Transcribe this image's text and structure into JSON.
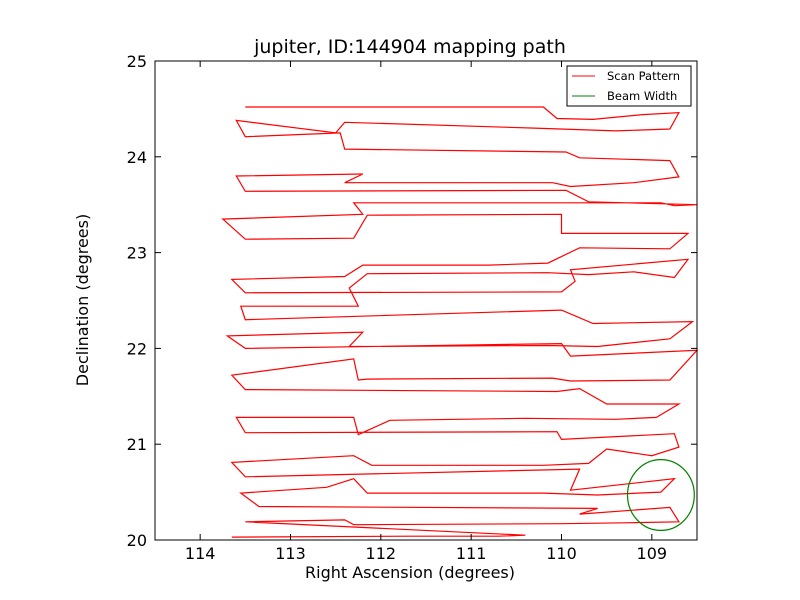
{
  "chart_data": {
    "type": "line",
    "title": "jupiter, ID:144904 mapping path",
    "xlabel": "Right Ascension (degrees)",
    "ylabel": "Declination (degrees)",
    "xlim": [
      114.5,
      108.5
    ],
    "ylim": [
      20,
      25
    ],
    "x_inverted": true,
    "xticks": [
      114,
      113,
      112,
      111,
      110,
      109
    ],
    "yticks": [
      20,
      21,
      22,
      23,
      24,
      25
    ],
    "xtick_labels": [
      "114",
      "113",
      "112",
      "111",
      "110",
      "109"
    ],
    "ytick_labels": [
      "20",
      "21",
      "22",
      "23",
      "24",
      "25"
    ],
    "grid": false,
    "legend_position": "top-right",
    "series": [
      {
        "name": "Scan Pattern",
        "color": "#ff0000",
        "kind": "path",
        "points": [
          [
            113.65,
            20.03
          ],
          [
            111.7,
            20.04
          ],
          [
            110.7,
            20.04
          ],
          [
            110.4,
            20.05
          ],
          [
            113.5,
            20.19
          ],
          [
            112.4,
            20.21
          ],
          [
            112.3,
            20.16
          ],
          [
            110.0,
            20.17
          ],
          [
            109.3,
            20.18
          ],
          [
            108.7,
            20.19
          ],
          [
            108.8,
            20.34
          ],
          [
            109.8,
            20.27
          ],
          [
            109.6,
            20.33
          ],
          [
            113.35,
            20.35
          ],
          [
            113.55,
            20.49
          ],
          [
            112.6,
            20.55
          ],
          [
            112.3,
            20.64
          ],
          [
            112.15,
            20.49
          ],
          [
            110.2,
            20.49
          ],
          [
            109.6,
            20.47
          ],
          [
            108.9,
            20.5
          ],
          [
            108.75,
            20.64
          ],
          [
            109.9,
            20.52
          ],
          [
            109.8,
            20.74
          ],
          [
            113.5,
            20.66
          ],
          [
            113.65,
            20.81
          ],
          [
            112.3,
            20.88
          ],
          [
            112.1,
            20.78
          ],
          [
            110.2,
            20.78
          ],
          [
            109.7,
            20.8
          ],
          [
            109.5,
            20.95
          ],
          [
            109.0,
            20.88
          ],
          [
            108.7,
            20.97
          ],
          [
            108.75,
            21.11
          ],
          [
            110.0,
            21.05
          ],
          [
            110.05,
            21.13
          ],
          [
            113.5,
            21.12
          ],
          [
            113.6,
            21.28
          ],
          [
            112.3,
            21.28
          ],
          [
            112.25,
            21.1
          ],
          [
            111.9,
            21.25
          ],
          [
            110.4,
            21.27
          ],
          [
            109.4,
            21.26
          ],
          [
            108.95,
            21.28
          ],
          [
            108.7,
            21.42
          ],
          [
            109.5,
            21.42
          ],
          [
            109.8,
            21.58
          ],
          [
            110.05,
            21.55
          ],
          [
            113.5,
            21.57
          ],
          [
            113.65,
            21.72
          ],
          [
            112.3,
            21.89
          ],
          [
            112.25,
            21.67
          ],
          [
            112.15,
            21.68
          ],
          [
            110.1,
            21.69
          ],
          [
            109.9,
            21.66
          ],
          [
            108.8,
            21.67
          ],
          [
            108.5,
            21.98
          ],
          [
            109.9,
            21.92
          ],
          [
            110.0,
            22.05
          ],
          [
            113.5,
            22.0
          ],
          [
            113.7,
            22.13
          ],
          [
            112.2,
            22.17
          ],
          [
            112.35,
            22.02
          ],
          [
            110.15,
            22.03
          ],
          [
            109.6,
            22.02
          ],
          [
            108.8,
            22.1
          ],
          [
            108.55,
            22.28
          ],
          [
            109.65,
            22.26
          ],
          [
            110.0,
            22.4
          ],
          [
            113.5,
            22.3
          ],
          [
            113.55,
            22.44
          ],
          [
            112.25,
            22.44
          ],
          [
            112.35,
            22.63
          ],
          [
            112.15,
            22.78
          ],
          [
            110.15,
            22.79
          ],
          [
            109.7,
            22.77
          ],
          [
            109.2,
            22.8
          ],
          [
            108.75,
            22.74
          ],
          [
            108.6,
            22.93
          ],
          [
            109.9,
            22.82
          ],
          [
            109.85,
            22.7
          ],
          [
            110.0,
            22.59
          ],
          [
            113.5,
            22.58
          ],
          [
            113.65,
            22.72
          ],
          [
            112.4,
            22.75
          ],
          [
            112.2,
            22.87
          ],
          [
            110.8,
            22.87
          ],
          [
            110.15,
            22.89
          ],
          [
            109.8,
            23.05
          ],
          [
            108.8,
            23.04
          ],
          [
            108.6,
            23.2
          ],
          [
            110.0,
            23.2
          ],
          [
            110.0,
            23.4
          ],
          [
            112.15,
            23.39
          ],
          [
            112.3,
            23.15
          ],
          [
            113.5,
            23.14
          ],
          [
            113.75,
            23.35
          ],
          [
            112.2,
            23.4
          ],
          [
            112.3,
            23.52
          ],
          [
            110.0,
            23.52
          ],
          [
            108.9,
            23.52
          ],
          [
            108.75,
            23.49
          ],
          [
            108.5,
            23.5
          ],
          [
            109.7,
            23.53
          ],
          [
            109.95,
            23.65
          ],
          [
            113.5,
            23.64
          ],
          [
            113.6,
            23.8
          ],
          [
            112.2,
            23.82
          ],
          [
            112.4,
            23.73
          ],
          [
            110.1,
            23.73
          ],
          [
            109.9,
            23.69
          ],
          [
            109.2,
            23.73
          ],
          [
            108.7,
            23.79
          ],
          [
            108.8,
            23.96
          ],
          [
            109.8,
            23.99
          ],
          [
            109.95,
            24.05
          ],
          [
            112.4,
            24.08
          ],
          [
            112.45,
            24.25
          ],
          [
            113.5,
            24.21
          ],
          [
            113.6,
            24.38
          ],
          [
            112.5,
            24.25
          ],
          [
            112.4,
            24.36
          ],
          [
            110.3,
            24.3
          ],
          [
            109.4,
            24.27
          ],
          [
            108.8,
            24.29
          ],
          [
            108.7,
            24.46
          ],
          [
            109.1,
            24.44
          ],
          [
            109.65,
            24.39
          ],
          [
            110.05,
            24.4
          ],
          [
            110.2,
            24.52
          ],
          [
            113.5,
            24.52
          ]
        ]
      },
      {
        "name": "Beam Width",
        "color": "#008000",
        "kind": "circle",
        "center": [
          108.9,
          20.47
        ],
        "radius_deg": 0.37
      }
    ]
  }
}
